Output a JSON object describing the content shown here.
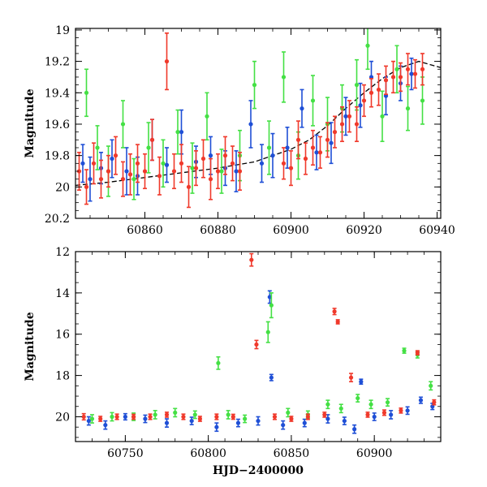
{
  "chart_data": [
    {
      "type": "scatter",
      "panel": "top",
      "title": "",
      "xlabel": "",
      "ylabel": "Magnitude",
      "xlim": [
        60841,
        60941
      ],
      "ylim": [
        20.2,
        18.99
      ],
      "y_inverted": true,
      "x_ticks": [
        60860,
        60880,
        60900,
        60920,
        60940
      ],
      "x_tick_labels": [
        "60860",
        "60880",
        "60900",
        "60920",
        "60940"
      ],
      "y_ticks": [
        19,
        19.2,
        19.4,
        19.6,
        19.8,
        20,
        20.2
      ],
      "y_tick_labels": [
        "19",
        "19.2",
        "19.4",
        "19.6",
        "19.8",
        "20",
        "20.2"
      ],
      "grid": false,
      "legend": "none",
      "colors": {
        "blue": "#1f4fd6",
        "green": "#44e044",
        "red": "#f0392b",
        "model": "#000000"
      },
      "series": [
        {
          "color": "blue",
          "x": [
            60843,
            60845,
            60848,
            60851,
            60855,
            60858,
            60862,
            60866,
            60870,
            60874,
            60878,
            60882,
            60885,
            60889,
            60892,
            60895,
            60899,
            60903,
            60907,
            60911,
            60915,
            60919,
            60922,
            60926,
            60930,
            60933
          ],
          "y": [
            19.85,
            19.95,
            19.88,
            19.82,
            19.9,
            19.93,
            19.7,
            19.86,
            19.65,
            19.84,
            19.8,
            19.88,
            19.9,
            19.6,
            19.85,
            19.8,
            19.75,
            19.5,
            19.78,
            19.72,
            19.55,
            19.48,
            19.3,
            19.42,
            19.34,
            19.28
          ],
          "err": [
            0.12,
            0.14,
            0.1,
            0.12,
            0.15,
            0.12,
            0.13,
            0.11,
            0.14,
            0.1,
            0.12,
            0.11,
            0.13,
            0.15,
            0.12,
            0.14,
            0.13,
            0.12,
            0.11,
            0.13,
            0.12,
            0.14,
            0.1,
            0.12,
            0.11,
            0.1
          ]
        },
        {
          "color": "green",
          "x": [
            60844,
            60847,
            60850,
            60854,
            60857,
            60861,
            60865,
            60869,
            60873,
            60877,
            60881,
            60886,
            60890,
            60894,
            60898,
            60902,
            60906,
            60910,
            60914,
            60918,
            60921,
            60925,
            60929,
            60932,
            60936
          ],
          "y": [
            19.4,
            19.75,
            19.9,
            19.6,
            19.95,
            19.75,
            19.85,
            19.65,
            19.88,
            19.55,
            19.9,
            19.8,
            19.35,
            19.75,
            19.3,
            19.8,
            19.45,
            19.6,
            19.5,
            19.35,
            19.1,
            19.55,
            19.25,
            19.5,
            19.45
          ],
          "err": [
            0.15,
            0.14,
            0.16,
            0.15,
            0.13,
            0.16,
            0.15,
            0.14,
            0.16,
            0.15,
            0.14,
            0.16,
            0.15,
            0.17,
            0.16,
            0.15,
            0.16,
            0.17,
            0.15,
            0.16,
            0.15,
            0.16,
            0.15,
            0.14,
            0.15
          ]
        },
        {
          "color": "red",
          "x": [
            60842,
            60844,
            60846,
            60848,
            60850,
            60852,
            60854,
            60856,
            60858,
            60860,
            60862,
            60864,
            60866,
            60868,
            60870,
            60872,
            60874,
            60876,
            60878,
            60880,
            60882,
            60884,
            60886,
            60898,
            60900,
            60902,
            60904,
            60906,
            60908,
            60910,
            60912,
            60914,
            60916,
            60918,
            60920,
            60922,
            60924,
            60926,
            60928,
            60930,
            60932,
            60934,
            60936
          ],
          "y": [
            19.9,
            20.0,
            19.85,
            19.95,
            19.9,
            19.8,
            19.95,
            19.92,
            19.85,
            19.9,
            19.7,
            19.93,
            19.2,
            19.9,
            19.85,
            20.0,
            19.88,
            19.82,
            19.95,
            19.9,
            19.8,
            19.85,
            19.9,
            19.85,
            19.88,
            19.7,
            19.82,
            19.75,
            19.78,
            19.7,
            19.65,
            19.6,
            19.55,
            19.6,
            19.45,
            19.4,
            19.38,
            19.32,
            19.3,
            19.3,
            19.25,
            19.28,
            19.25
          ],
          "err": [
            0.12,
            0.11,
            0.13,
            0.12,
            0.1,
            0.12,
            0.11,
            0.13,
            0.12,
            0.11,
            0.13,
            0.12,
            0.18,
            0.11,
            0.12,
            0.13,
            0.11,
            0.12,
            0.13,
            0.11,
            0.12,
            0.11,
            0.12,
            0.1,
            0.11,
            0.12,
            0.1,
            0.11,
            0.1,
            0.11,
            0.1,
            0.11,
            0.1,
            0.11,
            0.1,
            0.09,
            0.1,
            0.09,
            0.1,
            0.09,
            0.1,
            0.09,
            0.1
          ]
        }
      ],
      "model": {
        "style": "dashed",
        "x": [
          60841,
          60850,
          60860,
          60870,
          60880,
          60890,
          60900,
          60905,
          60910,
          60915,
          60920,
          60925,
          60930,
          60935,
          60941
        ],
        "y": [
          19.99,
          19.97,
          19.94,
          19.91,
          19.88,
          19.84,
          19.76,
          19.7,
          19.61,
          19.5,
          19.4,
          19.31,
          19.24,
          19.2,
          19.24
        ]
      }
    },
    {
      "type": "scatter",
      "panel": "bottom",
      "title": "",
      "xlabel": "HJD−2400000",
      "ylabel": "Magnitude",
      "xlim": [
        60720,
        60940
      ],
      "ylim": [
        21.2,
        12
      ],
      "y_inverted": true,
      "x_ticks": [
        60750,
        60800,
        60850,
        60900
      ],
      "x_tick_labels": [
        "60750",
        "60800",
        "60850",
        "60900"
      ],
      "y_ticks": [
        12,
        14,
        16,
        18,
        20
      ],
      "y_tick_labels": [
        "12",
        "14",
        "16",
        "18",
        "20"
      ],
      "grid": false,
      "legend": "none",
      "series": [
        {
          "color": "blue",
          "x": [
            60728,
            60738,
            60750,
            60762,
            60775,
            60790,
            60805,
            60818,
            60830,
            60837,
            60838,
            60845,
            60858,
            60872,
            60882,
            60888,
            60892,
            60900,
            60910,
            60920,
            60928,
            60935
          ],
          "y": [
            20.2,
            20.4,
            20.0,
            20.1,
            20.3,
            20.2,
            20.5,
            20.3,
            20.2,
            14.2,
            18.1,
            20.4,
            20.3,
            20.1,
            20.2,
            20.6,
            18.3,
            20.0,
            19.9,
            19.7,
            19.2,
            19.5
          ],
          "err": [
            0.2,
            0.2,
            0.15,
            0.18,
            0.2,
            0.18,
            0.2,
            0.18,
            0.2,
            0.3,
            0.15,
            0.2,
            0.18,
            0.2,
            0.18,
            0.2,
            0.12,
            0.18,
            0.2,
            0.18,
            0.15,
            0.15
          ]
        },
        {
          "color": "green",
          "x": [
            60730,
            60742,
            60755,
            60768,
            60780,
            60792,
            60806,
            60812,
            60822,
            60836,
            60838,
            60848,
            60860,
            60872,
            60880,
            60890,
            60898,
            60908,
            60918,
            60926,
            60934
          ],
          "y": [
            20.1,
            20.0,
            20.0,
            19.9,
            19.8,
            19.9,
            17.4,
            19.9,
            20.1,
            15.9,
            14.6,
            19.8,
            19.9,
            19.4,
            19.6,
            19.1,
            19.4,
            19.3,
            16.8,
            17.0,
            18.5
          ],
          "err": [
            0.2,
            0.2,
            0.18,
            0.2,
            0.2,
            0.18,
            0.3,
            0.2,
            0.18,
            0.5,
            0.6,
            0.2,
            0.18,
            0.2,
            0.2,
            0.18,
            0.2,
            0.18,
            0.12,
            0.15,
            0.2
          ]
        },
        {
          "color": "red",
          "x": [
            60725,
            60735,
            60745,
            60755,
            60765,
            60775,
            60785,
            60795,
            60805,
            60815,
            60826,
            60829,
            60840,
            60850,
            60860,
            60870,
            60876,
            60878,
            60886,
            60896,
            60906,
            60916,
            60926,
            60936
          ],
          "y": [
            20.0,
            20.1,
            20.0,
            20.0,
            20.0,
            19.9,
            20.0,
            20.1,
            20.0,
            20.0,
            12.4,
            16.5,
            20.0,
            20.1,
            20.0,
            19.9,
            14.9,
            15.4,
            18.1,
            19.9,
            19.8,
            19.7,
            16.9,
            19.3
          ],
          "err": [
            0.15,
            0.12,
            0.13,
            0.12,
            0.13,
            0.12,
            0.13,
            0.12,
            0.13,
            0.12,
            0.3,
            0.2,
            0.13,
            0.12,
            0.13,
            0.12,
            0.15,
            0.1,
            0.2,
            0.12,
            0.13,
            0.12,
            0.1,
            0.12
          ]
        }
      ]
    }
  ]
}
